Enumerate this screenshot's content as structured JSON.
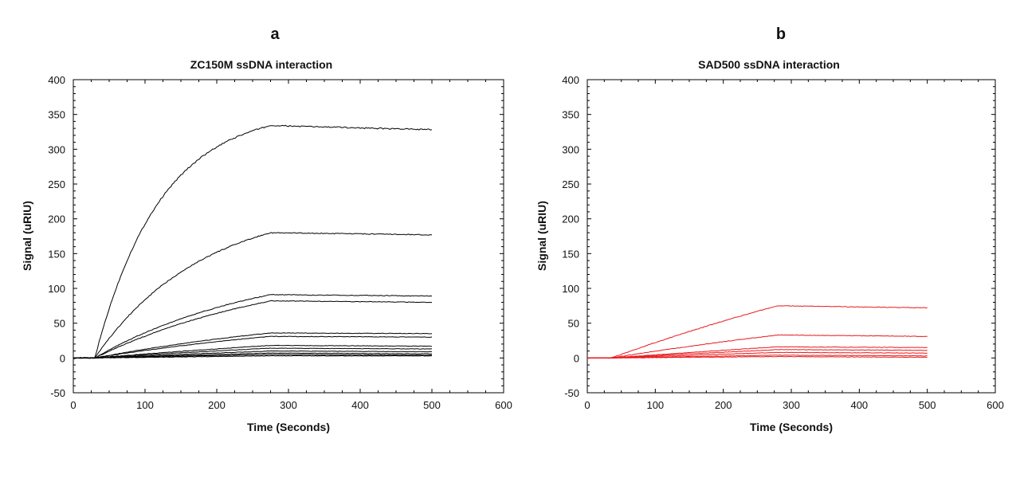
{
  "chart_data": [
    {
      "panel": "a",
      "type": "line",
      "title": "ZC150M ssDNA interaction",
      "xlabel": "Time (Seconds)",
      "ylabel": "Signal (uRIU)",
      "xlim": [
        0,
        600
      ],
      "ylim": [
        -50,
        400
      ],
      "xticks": [
        0,
        100,
        200,
        300,
        400,
        500,
        600
      ],
      "yticks": [
        -50,
        0,
        50,
        100,
        150,
        200,
        250,
        300,
        350,
        400
      ],
      "grid": false,
      "legend": "none",
      "color": "#000000",
      "injection_start": 30,
      "injection_end": 275,
      "x_end": 500,
      "series": [
        {
          "plateau": 334,
          "end": 328,
          "curvature": 0.9
        },
        {
          "plateau": 180,
          "end": 177,
          "curvature": 0.55
        },
        {
          "plateau": 91,
          "end": 89,
          "curvature": 0.35
        },
        {
          "plateau": 82,
          "end": 80,
          "curvature": 0.3
        },
        {
          "plateau": 36,
          "end": 35,
          "curvature": 0.2
        },
        {
          "plateau": 31,
          "end": 30,
          "curvature": 0.2
        },
        {
          "plateau": 18,
          "end": 17,
          "curvature": 0.1
        },
        {
          "plateau": 14,
          "end": 13,
          "curvature": 0.1
        },
        {
          "plateau": 10,
          "end": 9,
          "curvature": 0.05
        },
        {
          "plateau": 7,
          "end": 6,
          "curvature": 0.05
        },
        {
          "plateau": 5,
          "end": 4,
          "curvature": 0.0
        },
        {
          "plateau": 3,
          "end": 3,
          "curvature": 0.0
        }
      ]
    },
    {
      "panel": "b",
      "type": "line",
      "title": "SAD500 ssDNA interaction",
      "xlabel": "Time (Seconds)",
      "ylabel": "Signal (uRIU)",
      "xlim": [
        0,
        600
      ],
      "ylim": [
        -50,
        400
      ],
      "xticks": [
        0,
        100,
        200,
        300,
        400,
        500,
        600
      ],
      "yticks": [
        -50,
        0,
        50,
        100,
        150,
        200,
        250,
        300,
        350,
        400
      ],
      "grid": false,
      "legend": "none",
      "color": "#e8191c",
      "injection_start": 35,
      "injection_end": 280,
      "x_end": 500,
      "series": [
        {
          "plateau": 75,
          "end": 72,
          "curvature": 0.1
        },
        {
          "plateau": 33,
          "end": 31,
          "curvature": 0.1
        },
        {
          "plateau": 16,
          "end": 15,
          "curvature": 0.05
        },
        {
          "plateau": 12,
          "end": 11,
          "curvature": 0.05
        },
        {
          "plateau": 8,
          "end": 7,
          "curvature": 0.0
        },
        {
          "plateau": 4,
          "end": 3,
          "curvature": 0.0
        },
        {
          "plateau": 2,
          "end": 1,
          "curvature": 0.0
        }
      ]
    }
  ]
}
